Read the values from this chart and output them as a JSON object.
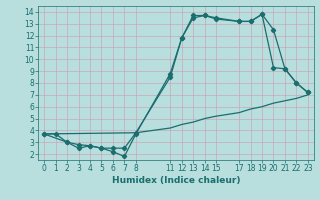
{
  "xlabel": "Humidex (Indice chaleur)",
  "bg_color": "#b8dede",
  "line_color": "#1a6e6e",
  "grid_color": "#c8a8b8",
  "xlim": [
    -0.5,
    23.5
  ],
  "ylim": [
    1.5,
    14.5
  ],
  "xticks": [
    0,
    1,
    2,
    3,
    4,
    5,
    6,
    7,
    8,
    11,
    12,
    13,
    14,
    15,
    17,
    18,
    19,
    20,
    21,
    22,
    23
  ],
  "yticks": [
    2,
    3,
    4,
    5,
    6,
    7,
    8,
    9,
    10,
    11,
    12,
    13,
    14
  ],
  "series1_x": [
    0,
    1,
    2,
    3,
    4,
    5,
    6,
    7,
    8,
    11,
    12,
    13,
    14,
    15,
    17,
    18,
    19,
    20,
    21,
    22,
    23
  ],
  "series1_y": [
    3.7,
    3.7,
    3.0,
    2.8,
    2.7,
    2.5,
    2.2,
    1.8,
    3.7,
    8.8,
    11.8,
    13.7,
    13.7,
    13.4,
    13.2,
    13.2,
    13.8,
    12.5,
    9.2,
    8.0,
    7.2
  ],
  "series2_x": [
    0,
    2,
    3,
    4,
    5,
    6,
    7,
    8,
    11,
    12,
    13,
    14,
    15,
    17,
    18,
    19,
    20,
    21,
    22,
    23
  ],
  "series2_y": [
    3.7,
    3.0,
    2.5,
    2.7,
    2.5,
    2.5,
    2.5,
    3.8,
    8.5,
    11.8,
    13.5,
    13.7,
    13.5,
    13.2,
    13.2,
    13.8,
    9.3,
    9.2,
    8.0,
    7.2
  ],
  "series3_x": [
    0,
    8,
    11,
    12,
    13,
    14,
    15,
    17,
    18,
    19,
    20,
    21,
    22,
    23
  ],
  "series3_y": [
    3.7,
    3.8,
    4.2,
    4.5,
    4.7,
    5.0,
    5.2,
    5.5,
    5.8,
    6.0,
    6.3,
    6.5,
    6.7,
    7.0
  ]
}
